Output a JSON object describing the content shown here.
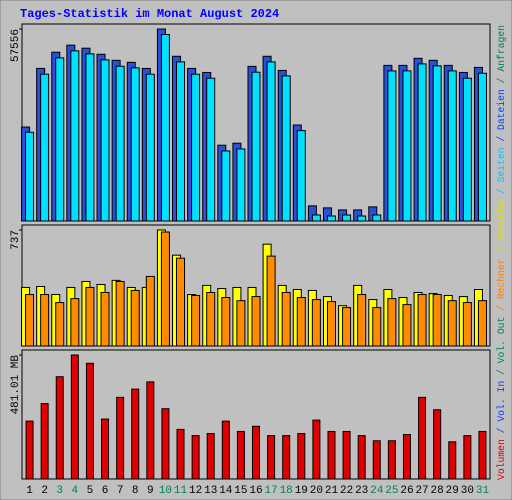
{
  "chart_data": {
    "type": "bar",
    "title": "Tages-Statistik im Monat August 2024",
    "categories": [
      "1",
      "2",
      "3",
      "4",
      "5",
      "6",
      "7",
      "8",
      "9",
      "10",
      "11",
      "12",
      "13",
      "14",
      "15",
      "16",
      "17",
      "18",
      "19",
      "20",
      "21",
      "22",
      "23",
      "24",
      "25",
      "26",
      "27",
      "28",
      "29",
      "30",
      "31"
    ],
    "category_colors": [
      "#000000",
      "#000000",
      "#00805c",
      "#00805c",
      "#000000",
      "#000000",
      "#000000",
      "#000000",
      "#000000",
      "#00805c",
      "#00805c",
      "#000000",
      "#000000",
      "#000000",
      "#000000",
      "#000000",
      "#00805c",
      "#00805c",
      "#000000",
      "#000000",
      "#000000",
      "#000000",
      "#000000",
      "#00805c",
      "#00805c",
      "#000000",
      "#000000",
      "#000000",
      "#000000",
      "#000000",
      "#00805c"
    ],
    "legend": [
      {
        "text": "Volumen",
        "color": "#e00000"
      },
      {
        "text": "/ Vol. In",
        "color": "#0040ff"
      },
      {
        "text": "/ Vol. Out",
        "color": "#00805c"
      },
      {
        "text": "/ Rechner",
        "color": "#ff8000"
      },
      {
        "text": "/ Besuche",
        "color": "#e0e000"
      },
      {
        "text": "/ Seiten",
        "color": "#00c0ff"
      },
      {
        "text": "/ Dateien",
        "color": "#0040ff"
      },
      {
        "text": "/ Anfragen",
        "color": "#00805c"
      }
    ],
    "panels": [
      {
        "type": "bar",
        "ylim": [
          0,
          57556
        ],
        "yticks": [
          57556
        ],
        "series": [
          {
            "name": "Dateien",
            "color": "#2850d8",
            "values": [
              28170,
              45740,
              50590,
              52710,
              51800,
              49980,
              48170,
              47560,
              45740,
              57556,
              49380,
              45740,
              44530,
              22720,
              23320,
              46350,
              49380,
              45140,
              28780,
              4540,
              3940,
              3330,
              3330,
              4240,
              46650,
              46650,
              48770,
              48170,
              46650,
              44530,
              46040
            ]
          },
          {
            "name": "Seiten",
            "color": "#00e0ff",
            "values": [
              26600,
              44000,
              48900,
              51000,
              50100,
              48300,
              46400,
              45900,
              44000,
              55900,
              47700,
              44000,
              42800,
              21000,
              21600,
              44600,
              47700,
              43500,
              27100,
              1800,
              1500,
              1800,
              1500,
              1800,
              45000,
              45000,
              47100,
              46500,
              45000,
              42800,
              44300
            ]
          }
        ]
      },
      {
        "type": "bar",
        "ylim": [
          0,
          737
        ],
        "yticks": [
          737
        ],
        "series": [
          {
            "name": "Besuche",
            "color": "#ffff00",
            "values": [
              372,
              378,
              327,
              372,
              410,
              391,
              417,
              372,
              372,
              737,
              577,
              327,
              385,
              365,
              372,
              372,
              647,
              385,
              359,
              353,
              314,
              256,
              385,
              295,
              359,
              308,
              340,
              333,
              321,
              314,
              359
            ]
          },
          {
            "name": "Rechner",
            "color": "#ff8c00",
            "values": [
              327,
              327,
              276,
              301,
              372,
              340,
              410,
              353,
              442,
              724,
              558,
              321,
              340,
              308,
              288,
              314,
              571,
              340,
              308,
              295,
              282,
              244,
              327,
              244,
              301,
              263,
              327,
              327,
              288,
              276,
              288
            ]
          }
        ]
      },
      {
        "type": "bar",
        "ylim": [
          0,
          481.01
        ],
        "yticks": [
          {
            "value": 481.01,
            "label": "481.01 MB"
          }
        ],
        "series": [
          {
            "name": "Volumen",
            "color": "#e00000",
            "values": [
              224.5,
              292.6,
              396.8,
              481.01,
              448.9,
              232.5,
              316.7,
              348.7,
              376.8,
              272.6,
              192.4,
              168.3,
              176.4,
              224.5,
              184.4,
              204.4,
              168.3,
              168.3,
              176.4,
              228.5,
              184.4,
              184.4,
              168.3,
              148.3,
              148.3,
              172.4,
              316.7,
              268.6,
              144.3,
              168.3,
              184.4
            ]
          }
        ]
      }
    ]
  }
}
